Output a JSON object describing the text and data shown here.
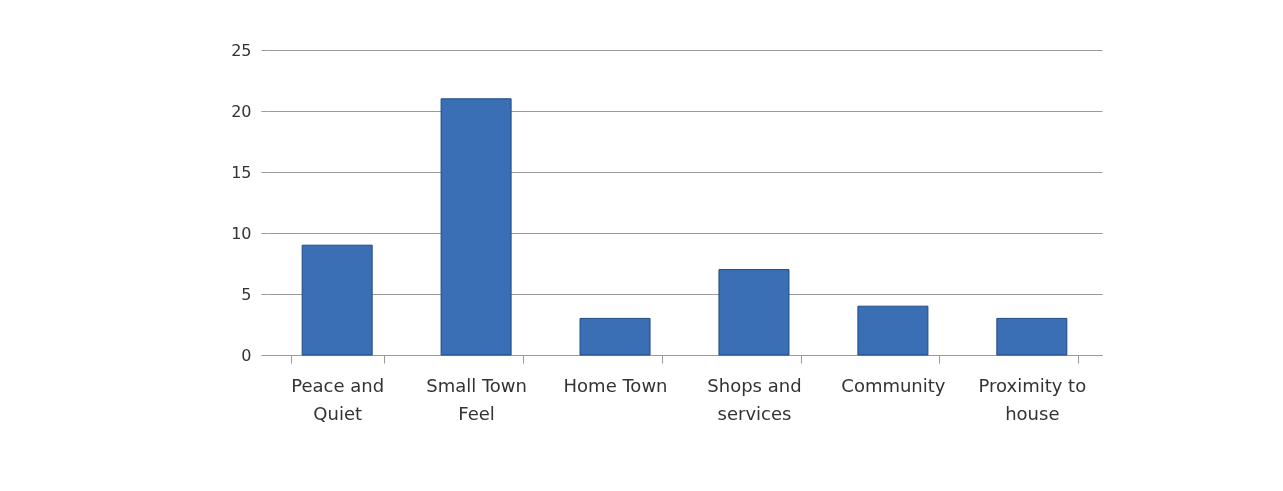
{
  "chart_data": {
    "type": "bar",
    "categories": [
      "Peace and\nQuiet",
      "Small Town\nFeel",
      "Home Town",
      "Shops and\nservices",
      "Community",
      "Proximity to\nhouse"
    ],
    "values": [
      9,
      21,
      3,
      7,
      4,
      3
    ],
    "color": "#3a6fb5",
    "ylim": [
      0,
      25
    ],
    "yticks": [
      0,
      5,
      10,
      15,
      20,
      25
    ],
    "grid": "y"
  }
}
